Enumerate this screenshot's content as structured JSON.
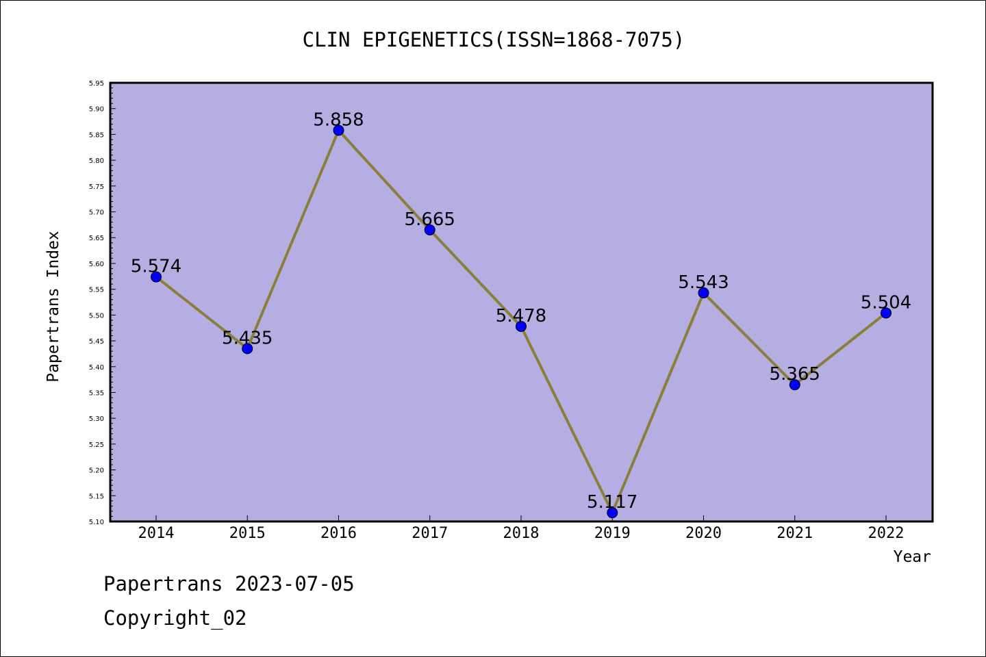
{
  "chart_data": {
    "type": "line",
    "title": "CLIN EPIGENETICS(ISSN=1868-7075)",
    "xlabel": "Year",
    "ylabel": "Papertrans Index",
    "categories": [
      "2014",
      "2015",
      "2016",
      "2017",
      "2018",
      "2019",
      "2020",
      "2021",
      "2022"
    ],
    "series": [
      {
        "values": [
          5.574,
          5.435,
          5.858,
          5.665,
          5.478,
          5.117,
          5.543,
          5.365,
          5.504
        ]
      }
    ],
    "data_labels": [
      "5.574",
      "5.435",
      "5.858",
      "5.665",
      "5.478",
      "5.117",
      "5.543",
      "5.365",
      "5.504"
    ],
    "ylim": [
      5.1,
      5.95
    ],
    "yticks": [
      "5.10",
      "5.15",
      "5.20",
      "5.25",
      "5.30",
      "5.35",
      "5.40",
      "5.45",
      "5.50",
      "5.55",
      "5.60",
      "5.65",
      "5.70",
      "5.75",
      "5.80",
      "5.85",
      "5.90",
      "5.95"
    ],
    "grid": false,
    "legend": "none",
    "colors": {
      "plot_background": "#b4aee2",
      "line": "#8b7d3a",
      "marker": "#0000ff",
      "axis": "#000000"
    }
  },
  "footer": {
    "line1": "Papertrans 2023-07-05",
    "line2": "Copyright_02"
  }
}
